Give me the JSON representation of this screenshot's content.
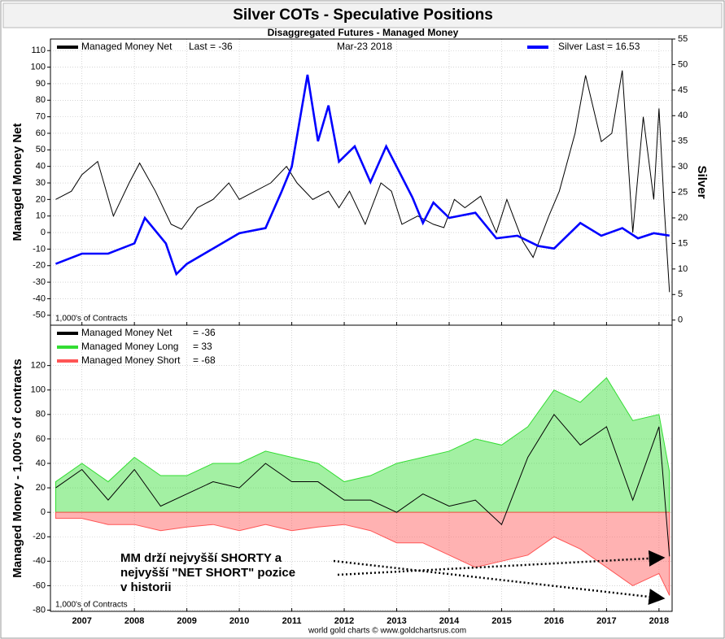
{
  "chart_data": [
    {
      "type": "line",
      "title": "Silver COTs - Speculative Positions",
      "subtitle": "Disaggregated Futures - Managed Money",
      "date": "Mar-23  2018",
      "ylabel": "Managed Money Net",
      "y2label": "Silver",
      "note": "1,000's of Contracts",
      "xlim": [
        2006.4,
        2018.25
      ],
      "xticks": [
        2007,
        2008,
        2009,
        2010,
        2011,
        2012,
        2013,
        2014,
        2015,
        2016,
        2017,
        2018
      ],
      "ylim": [
        -56,
        117
      ],
      "yticks": [
        -50,
        -40,
        -30,
        -20,
        -10,
        0,
        10,
        20,
        30,
        40,
        50,
        60,
        70,
        80,
        90,
        100,
        110
      ],
      "y2lim": [
        -1,
        55
      ],
      "y2ticks": [
        0,
        5,
        10,
        15,
        20,
        25,
        30,
        35,
        40,
        45,
        50,
        55
      ],
      "grid": true,
      "series": [
        {
          "name": "Managed Money Net",
          "last_label": "Last = -36",
          "color": "#000000",
          "x": [
            2006.5,
            2006.8,
            2007.0,
            2007.3,
            2007.6,
            2007.9,
            2008.1,
            2008.4,
            2008.7,
            2008.9,
            2009.2,
            2009.5,
            2009.8,
            2010.0,
            2010.3,
            2010.6,
            2010.9,
            2011.1,
            2011.4,
            2011.7,
            2011.9,
            2012.1,
            2012.4,
            2012.7,
            2012.9,
            2013.1,
            2013.4,
            2013.7,
            2013.9,
            2014.1,
            2014.3,
            2014.6,
            2014.9,
            2015.1,
            2015.4,
            2015.6,
            2015.9,
            2016.1,
            2016.4,
            2016.6,
            2016.9,
            2017.1,
            2017.3,
            2017.5,
            2017.7,
            2017.9,
            2018.0,
            2018.1,
            2018.2
          ],
          "values": [
            20,
            25,
            35,
            43,
            10,
            30,
            42,
            25,
            5,
            2,
            15,
            20,
            30,
            20,
            25,
            30,
            40,
            30,
            20,
            25,
            15,
            25,
            5,
            30,
            25,
            5,
            10,
            5,
            3,
            20,
            15,
            22,
            0,
            20,
            -5,
            -15,
            10,
            25,
            60,
            95,
            55,
            60,
            98,
            0,
            70,
            20,
            75,
            15,
            -36
          ]
        },
        {
          "name": "Silver",
          "last_label": "Last = 16.53",
          "color": "#0000ff",
          "axis": "y2",
          "x": [
            2006.5,
            2007.0,
            2007.5,
            2008.0,
            2008.2,
            2008.6,
            2008.8,
            2009.0,
            2009.5,
            2010.0,
            2010.5,
            2010.8,
            2011.0,
            2011.3,
            2011.5,
            2011.7,
            2011.9,
            2012.2,
            2012.5,
            2012.8,
            2013.0,
            2013.3,
            2013.5,
            2013.7,
            2014.0,
            2014.5,
            2014.9,
            2015.3,
            2015.7,
            2016.0,
            2016.5,
            2016.9,
            2017.3,
            2017.6,
            2017.9,
            2018.2
          ],
          "values": [
            11,
            13,
            13,
            15,
            20,
            15,
            9,
            11,
            14,
            17,
            18,
            25,
            30,
            48,
            35,
            42,
            31,
            34,
            27,
            34,
            30,
            24,
            19,
            23,
            20,
            21,
            16,
            16.5,
            14.5,
            14,
            19,
            16.5,
            18,
            16,
            17,
            16.53
          ]
        }
      ]
    },
    {
      "type": "area",
      "ylabel": "Managed Money - 1,000's of contracts",
      "note": "1,000's of Contracts",
      "footer": "world gold charts © www.goldchartsrus.com",
      "annotation": [
        "MM drží nejvyšší SHORTY a",
        "nejvyšší \"NET SHORT\" pozice",
        "v historii"
      ],
      "xlim": [
        2006.4,
        2018.25
      ],
      "xticks": [
        2007,
        2008,
        2009,
        2010,
        2011,
        2012,
        2013,
        2014,
        2015,
        2016,
        2017,
        2018
      ],
      "ylim": [
        -81,
        153
      ],
      "yticks": [
        -80,
        -60,
        -40,
        -20,
        0,
        20,
        40,
        60,
        80,
        100,
        120
      ],
      "grid": true,
      "x": [
        2006.5,
        2007.0,
        2007.5,
        2008.0,
        2008.5,
        2009.0,
        2009.5,
        2010.0,
        2010.5,
        2011.0,
        2011.5,
        2012.0,
        2012.5,
        2013.0,
        2013.5,
        2014.0,
        2014.5,
        2015.0,
        2015.5,
        2016.0,
        2016.5,
        2017.0,
        2017.5,
        2018.0,
        2018.2
      ],
      "series": [
        {
          "name": "Managed Money Net",
          "last_label": "= -36",
          "type": "line",
          "color": "#000000",
          "values": [
            20,
            35,
            10,
            35,
            5,
            15,
            25,
            20,
            40,
            25,
            25,
            10,
            10,
            0,
            15,
            5,
            10,
            -10,
            45,
            80,
            55,
            70,
            10,
            70,
            -36
          ]
        },
        {
          "name": "Managed Money Long",
          "last_label": "= 33",
          "type": "area",
          "color": "#33dd33",
          "values": [
            25,
            40,
            25,
            45,
            30,
            30,
            40,
            40,
            50,
            45,
            40,
            25,
            30,
            40,
            45,
            50,
            60,
            55,
            70,
            100,
            90,
            110,
            75,
            80,
            33
          ]
        },
        {
          "name": "Managed Money Short",
          "last_label": "= -68",
          "type": "area",
          "color": "#ff5555",
          "values": [
            -5,
            -5,
            -10,
            -10,
            -15,
            -12,
            -10,
            -15,
            -10,
            -15,
            -12,
            -10,
            -15,
            -25,
            -25,
            -35,
            -45,
            -40,
            -35,
            -20,
            -30,
            -45,
            -60,
            -50,
            -68
          ]
        }
      ]
    }
  ]
}
